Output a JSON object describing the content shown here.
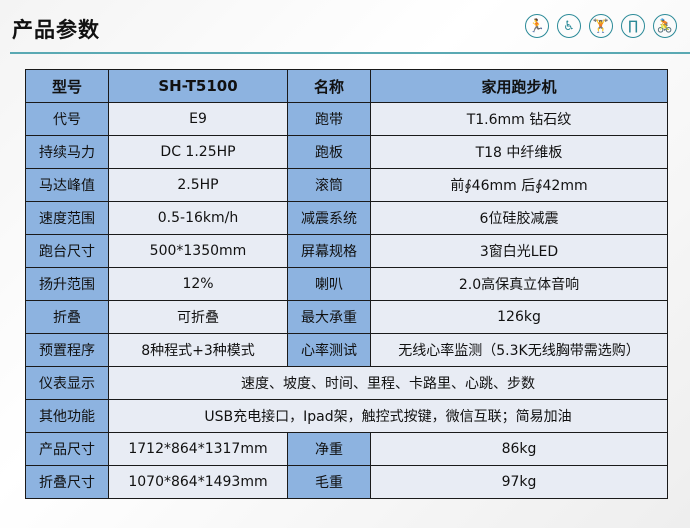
{
  "title": "产品参数",
  "icons": [
    "treadmill-icon",
    "massage-chair-icon",
    "weightlifting-icon",
    "pullup-frame-icon",
    "exercise-bike-icon"
  ],
  "colors": {
    "label_fill": "#8db3e0",
    "value_fill": "#e8ecf4",
    "accent": "#2b8a98"
  },
  "table": {
    "rows": [
      {
        "l1": "型号",
        "v1": "SH-T5100",
        "l2": "名称",
        "v2": "家用跑步机"
      },
      {
        "l1": "代号",
        "v1": "E9",
        "l2": "跑带",
        "v2": "T1.6mm 钻石纹"
      },
      {
        "l1": "持续马力",
        "v1": "DC 1.25HP",
        "l2": "跑板",
        "v2": "T18 中纤维板"
      },
      {
        "l1": "马达峰值",
        "v1": "2.5HP",
        "l2": "滚筒",
        "v2": "前∮46mm  后∮42mm"
      },
      {
        "l1": "速度范围",
        "v1": "0.5-16km/h",
        "l2": "减震系统",
        "v2": "6位硅胶减震"
      },
      {
        "l1": "跑台尺寸",
        "v1": "500*1350mm",
        "l2": "屏幕规格",
        "v2": "3窗白光LED"
      },
      {
        "l1": "扬升范围",
        "v1": "12%",
        "l2": "喇叭",
        "v2": "2.0高保真立体音响"
      },
      {
        "l1": "折叠",
        "v1": "可折叠",
        "l2": "最大承重",
        "v2": "126kg"
      },
      {
        "l1": "预置程序",
        "v1": "8种程式+3种模式",
        "l2": "心率测试",
        "v2": "无线心率监测（5.3K无线胸带需选购）"
      }
    ],
    "wide_rows": [
      {
        "l": "仪表显示",
        "v": "速度、坡度、时间、里程、卡路里、心跳、步数"
      },
      {
        "l": "其他功能",
        "v": "USB充电接口，Ipad架，触控式按键，微信互联；简易加油"
      }
    ],
    "tail_rows": [
      {
        "l1": "产品尺寸",
        "v1": "1712*864*1317mm",
        "l2": "净重",
        "v2": "86kg"
      },
      {
        "l1": "折叠尺寸",
        "v1": "1070*864*1493mm",
        "l2": "毛重",
        "v2": "97kg"
      }
    ]
  }
}
